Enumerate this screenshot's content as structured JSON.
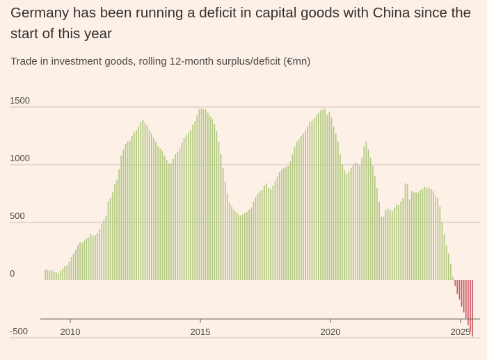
{
  "title": "Germany has been running a deficit in capital goods with China since the start of this year",
  "subtitle": "Trade in investment goods, rolling 12-month surplus/deficit (€mn)",
  "colors": {
    "positive": "#B2C880",
    "negative": "#CC5A65",
    "grid": "#C9C0B6",
    "axis": "#66605C",
    "background": "#FDF1E7"
  },
  "chart_data": {
    "type": "bar",
    "title": "Germany has been running a deficit in capital goods with China since the start of this year",
    "subtitle": "Trade in investment goods, rolling 12-month surplus/deficit (€mn)",
    "xlabel": "",
    "ylabel": "",
    "x_start": "2009-01",
    "frequency": "monthly",
    "xlim": [
      2008.85,
      2025.75
    ],
    "ylim": [
      -500,
      1500
    ],
    "yticks": [
      1500,
      1000,
      500,
      0,
      -500
    ],
    "ytick_labels": [
      "1500",
      "1000",
      "500",
      "0",
      "-500"
    ],
    "xticks": [
      2010,
      2015,
      2020,
      2025
    ],
    "xtick_labels": [
      "2010",
      "2015",
      "2020",
      "2025"
    ],
    "grid": true,
    "values": [
      90,
      90,
      80,
      90,
      70,
      70,
      60,
      80,
      100,
      120,
      130,
      160,
      200,
      230,
      260,
      300,
      330,
      320,
      340,
      360,
      370,
      400,
      380,
      390,
      410,
      440,
      490,
      520,
      560,
      680,
      710,
      760,
      830,
      870,
      960,
      1080,
      1130,
      1180,
      1200,
      1210,
      1250,
      1280,
      1300,
      1330,
      1370,
      1390,
      1360,
      1340,
      1300,
      1270,
      1230,
      1200,
      1160,
      1140,
      1120,
      1080,
      1040,
      1010,
      1010,
      1050,
      1090,
      1110,
      1140,
      1190,
      1230,
      1260,
      1280,
      1300,
      1350,
      1380,
      1430,
      1480,
      1490,
      1480,
      1480,
      1450,
      1420,
      1400,
      1350,
      1290,
      1200,
      1090,
      970,
      850,
      750,
      670,
      640,
      610,
      590,
      570,
      560,
      570,
      580,
      590,
      610,
      630,
      680,
      720,
      750,
      770,
      780,
      820,
      840,
      800,
      790,
      820,
      860,
      900,
      940,
      960,
      970,
      980,
      990,
      1030,
      1090,
      1150,
      1200,
      1220,
      1250,
      1270,
      1300,
      1330,
      1370,
      1380,
      1400,
      1430,
      1450,
      1470,
      1480,
      1480,
      1430,
      1460,
      1410,
      1330,
      1270,
      1200,
      1090,
      1000,
      950,
      920,
      940,
      970,
      1000,
      1020,
      1010,
      990,
      1060,
      1160,
      1200,
      1130,
      1060,
      990,
      900,
      800,
      680,
      550,
      550,
      610,
      620,
      610,
      600,
      630,
      660,
      650,
      680,
      710,
      840,
      830,
      700,
      770,
      760,
      760,
      760,
      780,
      790,
      810,
      800,
      800,
      790,
      770,
      730,
      710,
      640,
      500,
      400,
      300,
      230,
      140,
      30,
      -50,
      -120,
      -170,
      -230,
      -280,
      -330,
      -390,
      -450,
      -490
    ]
  }
}
